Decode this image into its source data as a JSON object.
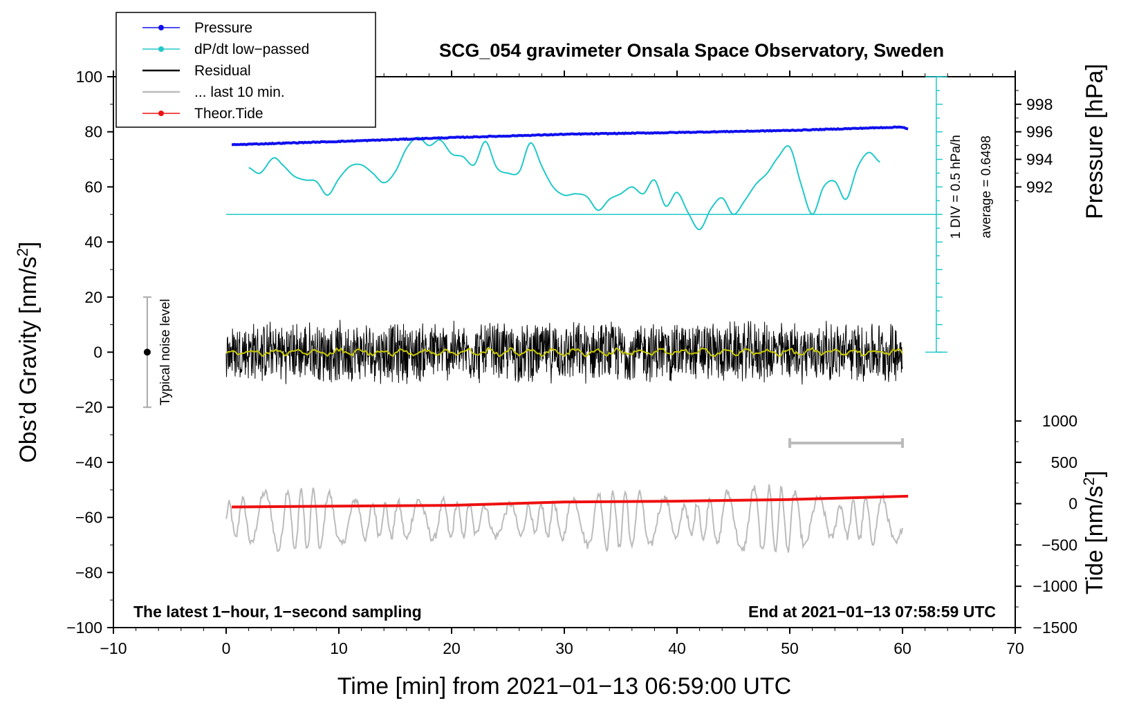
{
  "chart_data": {
    "type": "line",
    "title": "SCG_054 gravimeter Onsala Space Observatory, Sweden",
    "xlabel": "Time [min] from 2021−01−13 06:59:00 UTC",
    "ylabel_left": "Obs’d Gravity [nm/s²]",
    "ylabel_right_upper": "Pressure [hPa]",
    "ylabel_right_lower": "Tide [nm/s²]",
    "xlim": [
      -10,
      70
    ],
    "ylim": [
      -100,
      100
    ],
    "pressure_lim": [
      990,
      1000
    ],
    "tide_lim": [
      -1500,
      1500
    ],
    "x_ticks": [
      {
        "v": -10,
        "label": "−10"
      },
      {
        "v": 0,
        "label": "0"
      },
      {
        "v": 10,
        "label": "10"
      },
      {
        "v": 20,
        "label": "20"
      },
      {
        "v": 30,
        "label": "30"
      },
      {
        "v": 40,
        "label": "40"
      },
      {
        "v": 50,
        "label": "50"
      },
      {
        "v": 60,
        "label": "60"
      },
      {
        "v": 70,
        "label": "70"
      }
    ],
    "y_ticks": [
      {
        "v": 100,
        "label": "100"
      },
      {
        "v": 80,
        "label": "80"
      },
      {
        "v": 60,
        "label": "60"
      },
      {
        "v": 40,
        "label": "40"
      },
      {
        "v": 20,
        "label": "20"
      },
      {
        "v": 0,
        "label": "0"
      },
      {
        "v": -20,
        "label": "−20"
      },
      {
        "v": -40,
        "label": "−40"
      },
      {
        "v": -60,
        "label": "−60"
      },
      {
        "v": -80,
        "label": "−80"
      },
      {
        "v": -100,
        "label": "−100"
      }
    ],
    "pressure_ticks": [
      {
        "v": 998,
        "label": "998"
      },
      {
        "v": 996,
        "label": "996"
      },
      {
        "v": 994,
        "label": "994"
      },
      {
        "v": 992,
        "label": "992"
      }
    ],
    "tide_ticks": [
      {
        "v": 1000,
        "label": "1000"
      },
      {
        "v": 500,
        "label": "500"
      },
      {
        "v": 0,
        "label": "0"
      },
      {
        "v": -500,
        "label": "−500"
      },
      {
        "v": -1000,
        "label": "−1000"
      },
      {
        "v": -1500,
        "label": "−1500"
      }
    ],
    "legend": [
      {
        "label": "Pressure",
        "color": "#1010ee",
        "marker": true
      },
      {
        "label": "dP/dt low−passed",
        "color": "#20c8c8",
        "marker": true
      },
      {
        "label": "Residual",
        "color": "#000000",
        "marker": false
      },
      {
        "label": "... last 10 min.",
        "color": "#bbbbbb",
        "marker": false
      },
      {
        "label": "Theor.Tide",
        "color": "#ee1010",
        "marker": true
      }
    ],
    "series": [
      {
        "name": "Pressure",
        "axis": "pressure",
        "color": "#1010ee",
        "x": [
          0.5,
          10,
          20,
          30,
          40,
          50,
          60,
          60.5
        ],
        "values": [
          995.06,
          995.3,
          995.58,
          995.82,
          995.95,
          996.1,
          996.35,
          996.2
        ]
      },
      {
        "name": "dP/dt low−passed",
        "axis": "left",
        "color": "#20c8c8",
        "x": [
          2,
          3,
          4.2,
          5,
          6,
          7,
          8,
          9,
          10,
          11,
          12,
          13,
          14,
          15,
          16,
          17,
          18,
          19,
          20,
          21,
          22,
          23,
          24,
          25,
          26,
          27,
          28,
          29,
          30,
          31,
          32,
          33,
          34,
          35,
          36,
          37,
          38,
          39,
          40,
          41,
          42,
          43,
          44,
          45,
          46,
          47,
          48,
          49,
          50,
          51,
          52,
          53,
          54,
          55,
          56,
          57,
          58
        ],
        "values": [
          67,
          65,
          70.5,
          68,
          64,
          62.5,
          62,
          57,
          63,
          67.5,
          68,
          65,
          61.5,
          65.5,
          74,
          78,
          75,
          77,
          72,
          71,
          68,
          76.5,
          67,
          65,
          65.5,
          76,
          67.5,
          60,
          57,
          57.5,
          56.5,
          51.5,
          55.5,
          57.5,
          60,
          57.5,
          62.5,
          53,
          58,
          50.5,
          44.5,
          52,
          56,
          50,
          55,
          61,
          65,
          71,
          74.5,
          61,
          50,
          60,
          62,
          55.5,
          67,
          72.5,
          69
        ]
      },
      {
        "name": "dP/dt baseline",
        "axis": "left",
        "color": "#20c8c8",
        "x": [
          0,
          63
        ],
        "values": [
          50,
          50
        ]
      },
      {
        "name": "Residual",
        "axis": "left",
        "color": "#000000",
        "x": [
          0,
          60
        ],
        "values": [
          0,
          0
        ],
        "noise_amplitude": 12
      },
      {
        "name": "Residual smoothed",
        "axis": "left",
        "color": "#c8c800",
        "x": [
          0,
          60
        ],
        "values": [
          0,
          0
        ]
      },
      {
        "name": "... last 10 min.",
        "axis": "left",
        "color": "#bbbbbb",
        "x": [
          0,
          60
        ],
        "values": [
          -61,
          -61
        ],
        "oscillation_amplitude": 12
      },
      {
        "name": "Theor.Tide",
        "axis": "tide",
        "color": "#ee1010",
        "x": [
          0.5,
          10,
          20,
          30,
          40,
          50,
          60.5
        ],
        "values": [
          -40,
          -30,
          -20,
          20,
          30,
          50,
          90
        ]
      }
    ],
    "noise_level": {
      "label": "Typical noise level",
      "x": -7,
      "center": 0,
      "range": [
        -20,
        20
      ]
    },
    "dpdt_scale": {
      "label": "1 DIV = 0.5 hPa/h",
      "average_label": "average = 0.6498",
      "x": 63,
      "range": [
        0,
        100
      ],
      "divisions": 20
    },
    "ten_minute_bar": {
      "x": [
        50,
        60
      ],
      "y": -33
    },
    "annotations": {
      "bottom_left": "The latest 1−hour, 1−second sampling",
      "bottom_right": "End at 2021−01−13 07:58:59 UTC"
    }
  }
}
